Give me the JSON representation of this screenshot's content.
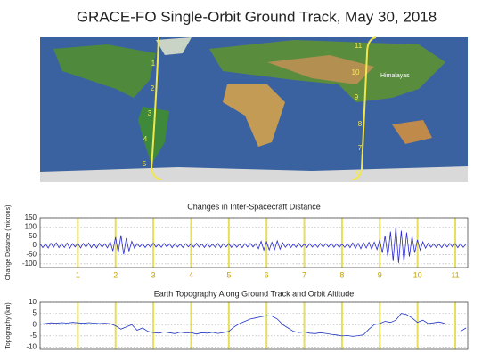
{
  "title": "GRACE-FO Single-Orbit Ground Track, May 30, 2018",
  "map": {
    "track_labels": [
      "1",
      "2",
      "3",
      "4",
      "5",
      "6",
      "7",
      "8",
      "9",
      "10",
      "11"
    ],
    "feature": "Himalayas"
  },
  "chart_data": [
    {
      "type": "line",
      "title": "Changes in Inter-Spacecraft Distance",
      "ylabel": "Change Distance (microns)",
      "ylim": [
        -120,
        150
      ],
      "yticks": [
        -100,
        -50,
        0,
        50,
        100,
        150
      ],
      "xlim": [
        0,
        11.33
      ],
      "xticks": [
        1,
        2,
        3,
        4,
        5,
        6,
        7,
        8,
        9,
        10,
        11
      ],
      "grid": true,
      "color": "#2a2ad0",
      "marker_color": "#e6df5a",
      "tick_label_color": "#c9a100",
      "values": [
        10,
        -12,
        8,
        -14,
        12,
        -10,
        14,
        -12,
        9,
        -11,
        13,
        -15,
        10,
        -8,
        12,
        -14,
        11,
        -9,
        13,
        -12,
        10,
        -14,
        12,
        -10,
        9,
        -13,
        20,
        -30,
        45,
        -40,
        55,
        -48,
        40,
        -32,
        22,
        -15,
        10,
        -8,
        9,
        -11,
        8,
        -10,
        12,
        -9,
        8,
        -10,
        11,
        -8,
        9,
        -12,
        10,
        -9,
        8,
        -11,
        10,
        -8,
        9,
        -10,
        12,
        -9,
        8,
        -11,
        10,
        -9,
        8,
        -10,
        11,
        -12,
        9,
        -8,
        10,
        -11,
        9,
        -10,
        8,
        -12,
        10,
        -9,
        11,
        -8,
        10,
        -18,
        22,
        -25,
        20,
        -24,
        18,
        -22,
        25,
        -20,
        15,
        -10,
        9,
        -11,
        8,
        -10,
        12,
        -9,
        8,
        -11,
        10,
        -9,
        8,
        -10,
        11,
        -9,
        10,
        -8,
        12,
        -10,
        9,
        -11,
        8,
        -10,
        9,
        -12,
        14,
        -16,
        12,
        -18,
        15,
        -14,
        17,
        -20,
        18,
        -22,
        30,
        -40,
        52,
        -60,
        75,
        -85,
        100,
        -95,
        80,
        -90,
        70,
        -60,
        50,
        -40,
        30,
        -25,
        20,
        -15,
        12,
        -10,
        9,
        -11,
        8,
        -12,
        10,
        -9,
        11,
        -8,
        10,
        -12,
        9,
        -10,
        8
      ]
    },
    {
      "type": "line",
      "title": "Earth Topography Along Ground Track and Orbit Altitude",
      "ylabel": "Topography (km)",
      "ylim": [
        -11,
        10
      ],
      "yticks": [
        -10,
        -5,
        0,
        5,
        10
      ],
      "xlim": [
        0,
        11.33
      ],
      "xticks": [
        1,
        2,
        3,
        4,
        5,
        6,
        7,
        8,
        9,
        10,
        11
      ],
      "grid": true,
      "color": "#2036c0",
      "marker_color": "#e6df5a",
      "values": [
        0.2,
        0.5,
        0.8,
        0.6,
        0.9,
        0.7,
        1,
        0.8,
        0.6,
        0.9,
        0.7,
        0.5,
        0.6,
        0.4,
        -0.5,
        -2,
        -1,
        0,
        -2.5,
        -1.5,
        -3,
        -3.5,
        -3.8,
        -3.2,
        -3.6,
        -4,
        -3.3,
        -3.7,
        -3.5,
        -4.2,
        -3.6,
        -3.8,
        -3.4,
        -3.9,
        -3.5,
        -3,
        -1,
        0.5,
        1.5,
        2.5,
        3,
        3.5,
        4,
        3.8,
        2.5,
        0,
        -1.5,
        -3,
        -3.5,
        -3.2,
        -3.8,
        -4,
        -3.6,
        -3.9,
        -4.3,
        -4.6,
        -5,
        -4.8,
        -5.2,
        -4.9,
        -4.5,
        -2,
        0,
        0.5,
        1.5,
        1,
        2,
        5,
        4.5,
        3,
        1,
        2,
        0.5,
        0.8,
        1.2,
        0.6,
        null,
        null,
        -3,
        -1.5
      ]
    }
  ]
}
